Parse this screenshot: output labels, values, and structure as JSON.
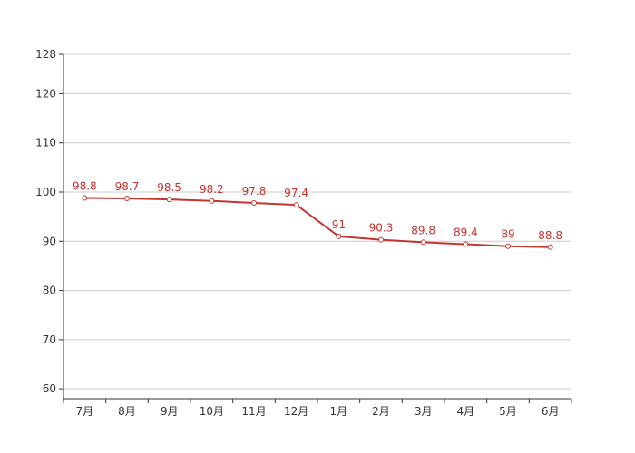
{
  "chart_data": {
    "type": "line",
    "title": "",
    "xlabel": "",
    "ylabel": "",
    "categories": [
      "7月",
      "8月",
      "9月",
      "10月",
      "11月",
      "12月",
      "1月",
      "2月",
      "3月",
      "4月",
      "5月",
      "6月"
    ],
    "series": [
      {
        "values": [
          98.8,
          98.7,
          98.5,
          98.2,
          97.8,
          97.4,
          91,
          90.3,
          89.8,
          89.4,
          89,
          88.8
        ],
        "color": "#c23531"
      }
    ],
    "data_labels": [
      "98.8",
      "98.7",
      "98.5",
      "98.2",
      "97.8",
      "97.4",
      "91",
      "90.3",
      "89.8",
      "89.4",
      "89",
      "88.8"
    ],
    "ylim": [
      58,
      128
    ],
    "yticks": [
      60,
      70,
      80,
      90,
      100,
      110,
      120,
      128
    ],
    "ytick_labels": [
      "60",
      "70",
      "80",
      "90",
      "100",
      "110",
      "120",
      "128"
    ],
    "grid": true,
    "legend": "none",
    "colors": {
      "axis": "#333333",
      "grid": "#cccccc",
      "line": "#c23531",
      "label": "#c23531"
    }
  }
}
